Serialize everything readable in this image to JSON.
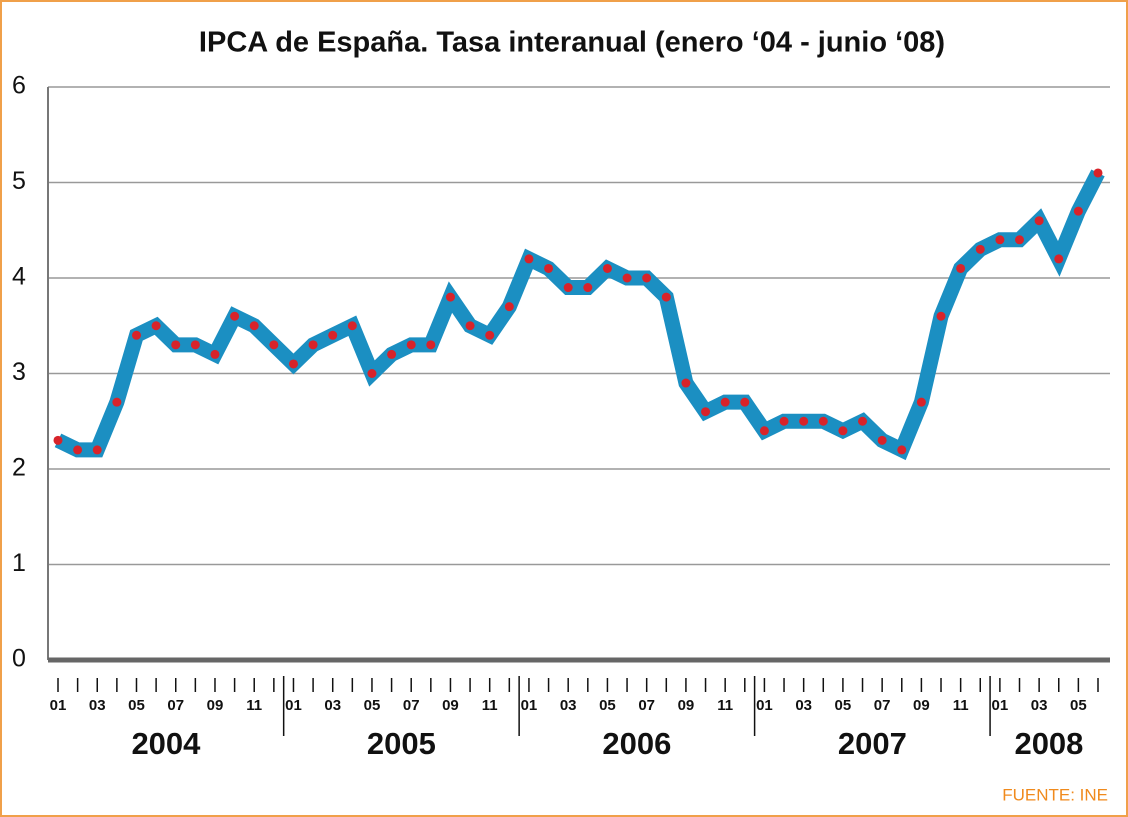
{
  "chart_data": {
    "type": "line",
    "title": "IPCA de España. Tasa interanual (enero ‘04 - junio ‘08)",
    "source": "FUENTE: INE",
    "categories": [
      "01",
      null,
      "03",
      null,
      "05",
      null,
      "07",
      null,
      "09",
      null,
      "11",
      null,
      "01",
      null,
      "03",
      null,
      "05",
      null,
      "07",
      null,
      "09",
      null,
      "11",
      null,
      "01",
      null,
      "03",
      null,
      "05",
      null,
      "07",
      null,
      "09",
      null,
      "11",
      null,
      "01",
      null,
      "03",
      null,
      "05",
      null,
      "07",
      null,
      "09",
      null,
      "11",
      null,
      "01",
      null,
      "03",
      null,
      "05",
      null
    ],
    "years": [
      "2004",
      "2005",
      "2006",
      "2007",
      "2008"
    ],
    "series": [
      {
        "name": "IPCA",
        "color": "#1b8fc2",
        "marker_color": "#d8232a",
        "values": [
          2.3,
          2.2,
          2.2,
          2.7,
          3.4,
          3.5,
          3.3,
          3.3,
          3.2,
          3.6,
          3.5,
          3.3,
          3.1,
          3.3,
          3.4,
          3.5,
          3.0,
          3.2,
          3.3,
          3.3,
          3.8,
          3.5,
          3.4,
          3.7,
          4.2,
          4.1,
          3.9,
          3.9,
          4.1,
          4.0,
          4.0,
          3.8,
          2.9,
          2.6,
          2.7,
          2.7,
          2.4,
          2.5,
          2.5,
          2.5,
          2.4,
          2.5,
          2.3,
          2.2,
          2.7,
          3.6,
          4.1,
          4.3,
          4.4,
          4.4,
          4.6,
          4.2,
          4.7,
          5.1
        ]
      }
    ],
    "ylim": [
      0,
      6
    ],
    "yticks": [
      0,
      1,
      2,
      3,
      4,
      5,
      6
    ],
    "grid": true
  }
}
